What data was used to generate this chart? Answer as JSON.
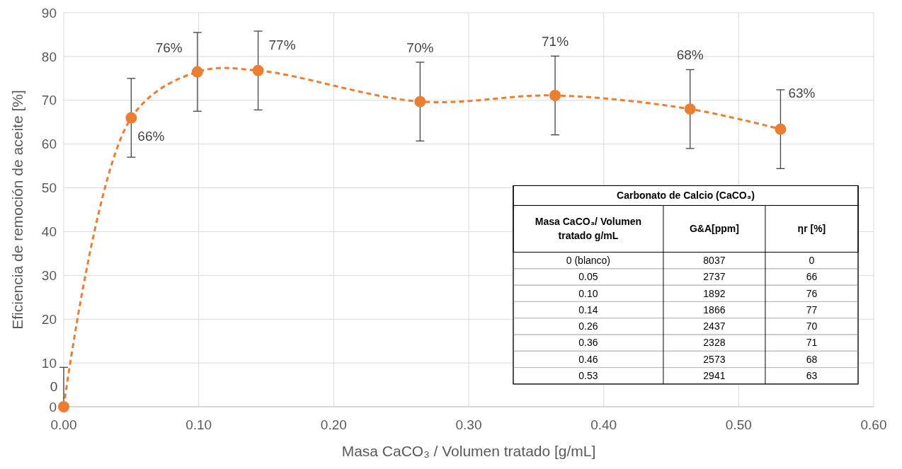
{
  "chart_data": {
    "type": "line",
    "xlabel": "Masa CaCO₃ / Volumen tratado [g/mL]",
    "ylabel": "Eficiencia de remoción de aceite [%]",
    "xlim": [
      0,
      0.6
    ],
    "xticks": [
      {
        "value": 0,
        "label": "0.00"
      },
      {
        "value": 0.1,
        "label": "0.10"
      },
      {
        "value": 0.2,
        "label": "0.20"
      },
      {
        "value": 0.3,
        "label": "0.30"
      },
      {
        "value": 0.4,
        "label": "0.40"
      },
      {
        "value": 0.5,
        "label": "0.50"
      },
      {
        "value": 0.6,
        "label": "0.60"
      }
    ],
    "ylim": [
      0,
      90
    ],
    "yticks": [
      0,
      10,
      20,
      30,
      40,
      50,
      60,
      70,
      80,
      90
    ],
    "grid": true,
    "marker": "circle",
    "line_style": "dashed",
    "series": [
      {
        "color": "#ed7d31",
        "x": [
          0,
          0.05,
          0.099,
          0.144,
          0.264,
          0.364,
          0.464,
          0.531
        ],
        "values": [
          0,
          66,
          76.5,
          76.8,
          69.7,
          71.1,
          68,
          63.4
        ],
        "errors": [
          [
            0,
            9
          ],
          9,
          9,
          9,
          9,
          9,
          9,
          9
        ],
        "value_labels": [
          "0",
          "66%",
          "76%",
          "77%",
          "70%",
          "71%",
          "68%",
          "63%"
        ]
      }
    ],
    "annotations": [
      "Carbonato de Calcio (CaCO₃)",
      "Masa CaCO₃/ Volumen tratado g/mL",
      "G&A[ppm]",
      "ηr [%]",
      "0 (blanco)",
      "8037",
      "0",
      "0.05",
      "2737",
      "66",
      "0.10",
      "1892",
      "76",
      "0.14",
      "1866",
      "77",
      "0.26",
      "2437",
      "70",
      "0.36",
      "2328",
      "71",
      "0.46",
      "2573",
      "68",
      "0.53",
      "2941",
      "63"
    ]
  }
}
